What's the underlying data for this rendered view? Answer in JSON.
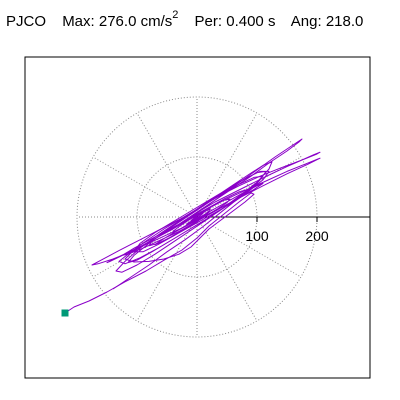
{
  "header": {
    "station": "PJCO",
    "max_label": "Max:",
    "max_value": "276.0 cm/s",
    "max_exp": "2",
    "per_label": "Per:",
    "per_value": "0.400 s",
    "ang_label": "Ang:",
    "ang_value": "218.0"
  },
  "chart_data": {
    "type": "line",
    "title": "",
    "xlabel": "",
    "ylabel": "",
    "axis_ticks": [
      100,
      200
    ],
    "rings": [
      100,
      200
    ],
    "spokes_deg": [
      0,
      30,
      60,
      90,
      120,
      150,
      180,
      210,
      240,
      270,
      300,
      330
    ],
    "grid": true,
    "end_marker": [
      -220,
      -160
    ],
    "end_marker_color": "#009977",
    "trace_color": "#8a00c8",
    "series": [
      {
        "x": [
          -220,
          -205,
          -180,
          -150,
          -120,
          -85,
          -55,
          -25,
          0,
          20,
          45,
          70,
          90,
          95,
          80,
          60,
          40,
          20,
          5,
          -10,
          -30,
          -55,
          -80,
          -105,
          -120,
          -110,
          -90,
          -60,
          -30,
          0,
          30,
          60,
          95,
          130,
          160,
          175,
          170,
          150,
          120,
          90,
          60,
          30,
          5,
          -20,
          -50,
          -80,
          -110,
          -140,
          -165,
          -175,
          -160,
          -130,
          -95,
          -60,
          -25,
          5,
          35,
          70,
          105,
          140,
          175,
          200,
          205,
          195,
          175,
          150,
          120,
          90,
          60,
          30,
          5,
          -15,
          -40,
          -70,
          -100,
          -130,
          -150,
          -145,
          -120,
          -90,
          -55,
          -20,
          10,
          40,
          75,
          110,
          150,
          185,
          205,
          200,
          180,
          150,
          115,
          80,
          45,
          15,
          -15,
          -45,
          -75,
          -105,
          -125,
          -115,
          -90,
          -60,
          -30,
          -5,
          20,
          45,
          70,
          95,
          110,
          100,
          80,
          55,
          30,
          5,
          -15,
          -35,
          -55,
          -70,
          -60,
          -40,
          -20,
          0,
          15,
          25,
          20,
          5,
          -10,
          -20,
          -15,
          0,
          10,
          5,
          -5,
          0
        ],
        "y": [
          -160,
          -150,
          -140,
          -125,
          -108,
          -90,
          -72,
          -55,
          -35,
          -15,
          5,
          25,
          40,
          38,
          25,
          10,
          -5,
          -20,
          -35,
          -50,
          -62,
          -70,
          -74,
          -75,
          -70,
          -60,
          -48,
          -30,
          -12,
          8,
          28,
          50,
          75,
          100,
          120,
          130,
          125,
          110,
          90,
          68,
          48,
          28,
          10,
          -8,
          -25,
          -42,
          -58,
          -70,
          -78,
          -80,
          -72,
          -56,
          -38,
          -20,
          -2,
          16,
          34,
          52,
          68,
          82,
          95,
          105,
          108,
          104,
          95,
          84,
          70,
          55,
          40,
          25,
          10,
          -5,
          -20,
          -36,
          -52,
          -66,
          -76,
          -74,
          -62,
          -48,
          -32,
          -16,
          0,
          16,
          34,
          52,
          72,
          88,
          98,
          96,
          88,
          76,
          60,
          44,
          28,
          12,
          -4,
          -20,
          -36,
          -52,
          -64,
          -62,
          -52,
          -38,
          -24,
          -10,
          4,
          18,
          32,
          46,
          56,
          52,
          42,
          28,
          14,
          0,
          -12,
          -24,
          -36,
          -46,
          -42,
          -32,
          -20,
          -8,
          4,
          12,
          8,
          -2,
          -10,
          -16,
          -10,
          -2,
          6,
          2,
          -4,
          0
        ]
      },
      {
        "x": [
          -140,
          -110,
          -80,
          -50,
          -20,
          10,
          40,
          70,
          100,
          120,
          125,
          110,
          85,
          55,
          25,
          -5,
          -35,
          -65,
          -95,
          -120,
          -135,
          -125,
          -100,
          -70,
          -40,
          -10,
          20,
          50,
          80,
          105,
          115,
          100,
          70,
          40,
          10,
          -20,
          -50,
          -80,
          -105,
          -115,
          -100,
          -75,
          -45,
          -15,
          15,
          45,
          75,
          100,
          110,
          95,
          65,
          35,
          5,
          -25,
          -55,
          -85,
          -110,
          -130,
          -120,
          -95,
          -65,
          -35,
          -5,
          25,
          55,
          85,
          110,
          120,
          105,
          80,
          50,
          20,
          -10,
          -40,
          -70,
          -95,
          -105,
          -90,
          -65,
          -40,
          -15,
          10,
          35,
          60,
          80,
          85,
          70,
          45,
          20,
          -5,
          -30,
          -55,
          -75,
          -80,
          -65,
          -45,
          -25,
          -5,
          15,
          35,
          50,
          55,
          45,
          25,
          5,
          -15,
          -30,
          -40,
          -35,
          -20,
          -5,
          10,
          20,
          22,
          15,
          5,
          -5,
          -10,
          -6,
          0
        ],
        "y": [
          -120,
          -100,
          -80,
          -58,
          -38,
          -16,
          8,
          32,
          58,
          80,
          92,
          86,
          70,
          50,
          30,
          10,
          -10,
          -30,
          -52,
          -74,
          -90,
          -92,
          -80,
          -62,
          -42,
          -22,
          -2,
          20,
          42,
          62,
          76,
          74,
          58,
          38,
          18,
          -2,
          -22,
          -44,
          -64,
          -76,
          -72,
          -58,
          -40,
          -22,
          -4,
          16,
          36,
          56,
          68,
          66,
          52,
          34,
          16,
          -2,
          -20,
          -40,
          -58,
          -74,
          -78,
          -68,
          -52,
          -34,
          -16,
          2,
          22,
          42,
          62,
          76,
          76,
          64,
          46,
          28,
          10,
          -8,
          -26,
          -44,
          -58,
          -58,
          -46,
          -32,
          -18,
          -4,
          10,
          24,
          38,
          46,
          42,
          30,
          16,
          2,
          -12,
          -26,
          -40,
          -48,
          -44,
          -34,
          -22,
          -10,
          2,
          14,
          24,
          30,
          28,
          18,
          6,
          -6,
          -16,
          -24,
          -24,
          -16,
          -8,
          2,
          10,
          14,
          10,
          4,
          -2,
          -6,
          -4,
          0
        ]
      }
    ]
  }
}
